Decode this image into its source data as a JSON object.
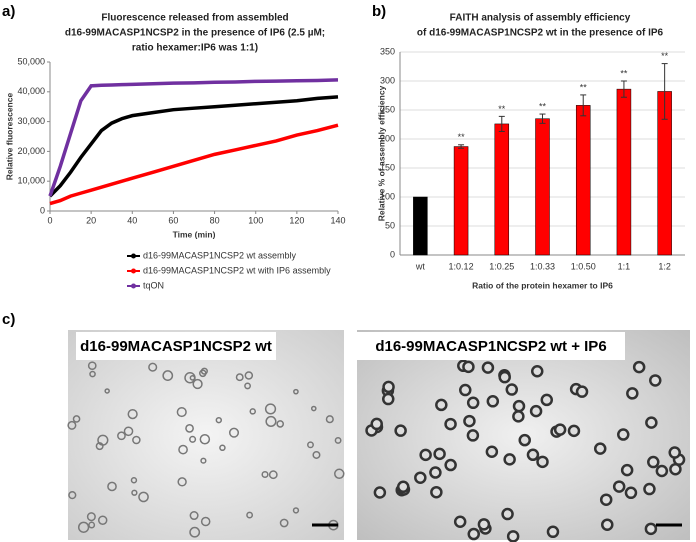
{
  "panels": [
    "a)",
    "b)",
    "c)"
  ],
  "chart_data": [
    {
      "type": "line",
      "title": [
        "Fluorescence released from assembled",
        "d16-99MACASP1NCSP2 in the presence of IP6 (2.5 µM;",
        "ratio hexamer:IP6 was 1:1)"
      ],
      "x_label": "Time (min)",
      "y_label": "Relative fluorescence",
      "x": [
        0,
        5,
        10,
        15,
        20,
        25,
        30,
        35,
        40,
        50,
        60,
        70,
        80,
        90,
        100,
        110,
        120,
        130,
        140
      ],
      "series": [
        {
          "name": "d16-99MACASP1NCSP2 wt assembly",
          "color": "#000000",
          "values": [
            5000,
            8500,
            13000,
            18000,
            22500,
            27000,
            29500,
            31000,
            32000,
            33000,
            34000,
            34500,
            35000,
            35500,
            36000,
            36500,
            37000,
            37800,
            38300
          ]
        },
        {
          "name": "d16-99MACASP1NCSP2 wt with IP6 assembly",
          "color": "#ff0000",
          "values": [
            2500,
            3500,
            5000,
            6000,
            7000,
            8000,
            9000,
            10000,
            11000,
            13000,
            15000,
            17000,
            19000,
            20500,
            22000,
            23500,
            25500,
            27000,
            28800
          ]
        },
        {
          "name": "tqON",
          "color": "#7030a0",
          "values": [
            5000,
            15000,
            26000,
            37000,
            42000,
            42200,
            42300,
            42400,
            42500,
            42700,
            42900,
            43000,
            43200,
            43300,
            43500,
            43600,
            43700,
            43800,
            44000
          ]
        }
      ],
      "xlim": [
        0,
        140
      ],
      "xticks": [
        0,
        20,
        40,
        60,
        80,
        100,
        120,
        140
      ],
      "ylim": [
        0,
        50000
      ],
      "yticks": [
        0,
        {
          "value": 10000,
          "label": "10,000"
        },
        {
          "value": 20000,
          "label": "20,000"
        },
        {
          "value": 30000,
          "label": "30,000"
        },
        {
          "value": 40000,
          "label": "40,000"
        },
        {
          "value": 50000,
          "label": "50,000"
        }
      ],
      "legend": "bottom"
    },
    {
      "type": "bar",
      "title": [
        "FAITH analysis of assembly efficiency",
        "of d16-99MACASP1NCSP2  wt in the presence of IP6"
      ],
      "x_label": "Ratio of the protein hexamer to IP6",
      "y_label": "Relative % of assembly efficiency",
      "categories": [
        "wt",
        "1:0.12",
        "1:0.25",
        "1:0.33",
        "1:0.50",
        "1:1",
        "1:2"
      ],
      "values": [
        100,
        187,
        226,
        235,
        258,
        286,
        282
      ],
      "errors": [
        0,
        3,
        13,
        8,
        18,
        14,
        48
      ],
      "colors": [
        "#000000",
        "#ff0000",
        "#ff0000",
        "#ff0000",
        "#ff0000",
        "#ff0000",
        "#ff0000"
      ],
      "significance": [
        null,
        "**",
        "**",
        "**",
        "**",
        "**",
        "**"
      ],
      "ylim": [
        0,
        350
      ],
      "yticks": [
        0,
        50,
        100,
        150,
        200,
        250,
        300,
        350
      ],
      "grid": true
    }
  ],
  "micrographs": [
    {
      "title": "d16-99MACASP1NCSP2 wt"
    },
    {
      "title": "d16-99MACASP1NCSP2 wt + IP6"
    }
  ]
}
